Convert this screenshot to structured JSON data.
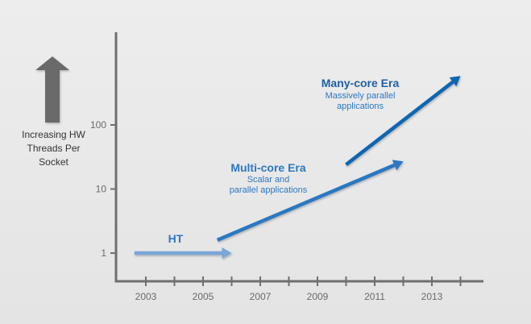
{
  "chart_data": {
    "type": "line",
    "title": "",
    "xlabel": "",
    "ylabel": "Increasing HW Threads Per Socket",
    "y_scale": "log",
    "xlim": [
      2002,
      2015
    ],
    "ylim": [
      0.5,
      2000
    ],
    "x_ticks": [
      2003,
      2005,
      2007,
      2009,
      2011,
      2013
    ],
    "y_ticks": [
      1,
      10,
      100
    ],
    "grid": false,
    "series": [
      {
        "name": "HT",
        "color": "#7aa6d8",
        "points": [
          {
            "x": 2002.6,
            "y": 1
          },
          {
            "x": 2006,
            "y": 1
          }
        ]
      },
      {
        "name": "Multi-core Era",
        "description": "Scalar and parallel applications",
        "color": "#2b78c2",
        "points": [
          {
            "x": 2005.5,
            "y": 1.6
          },
          {
            "x": 2012,
            "y": 27
          }
        ]
      },
      {
        "name": "Many-core Era",
        "description": "Massively parallel applications",
        "color": "#0f66b1",
        "points": [
          {
            "x": 2010,
            "y": 24
          },
          {
            "x": 2014,
            "y": 580
          }
        ]
      }
    ]
  },
  "axis_arrow_icon": "up-arrow-icon",
  "colors": {
    "axis": "#6f6f6f",
    "arrow_icon": "#6b6b6b",
    "label_blue": "#2b78c2",
    "title_blue": "#1f5fa3"
  }
}
